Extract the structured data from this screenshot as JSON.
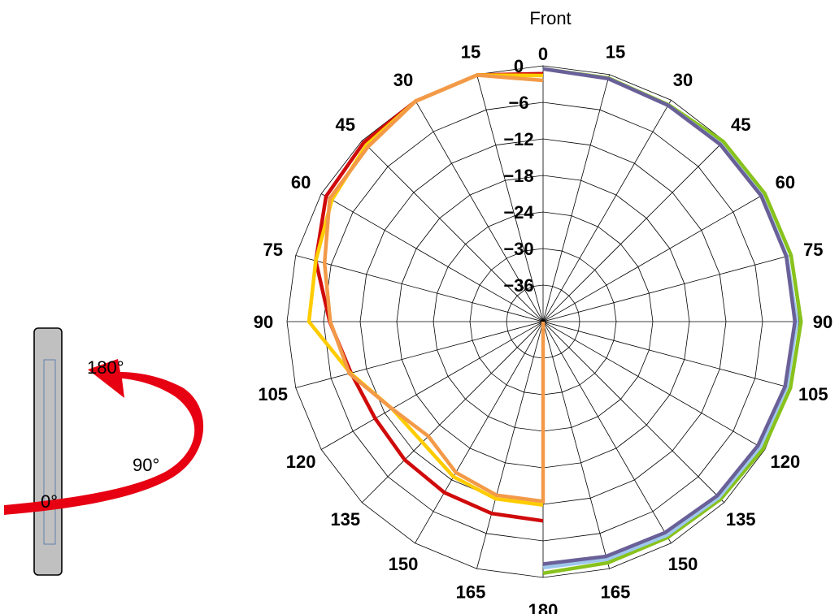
{
  "chart_data": {
    "type": "polar-line",
    "front_label": "Front",
    "angles": [
      0,
      15,
      30,
      45,
      60,
      75,
      90,
      105,
      120,
      135,
      150,
      165,
      180
    ],
    "angle_labels": [
      "0",
      "15",
      "30",
      "45",
      "60",
      "75",
      "90",
      "105",
      "120",
      "135",
      "150",
      "165",
      "180"
    ],
    "radial_ticks": [
      0,
      -6,
      -12,
      -18,
      -24,
      -30,
      -36
    ],
    "radial_tick_labels": [
      "0",
      "−6",
      "−12",
      "−18",
      "−24",
      "−30",
      "−36"
    ],
    "radial_range": [
      -42,
      0
    ],
    "grid": true,
    "series": [
      {
        "side": "right",
        "color": "#88c21c",
        "angles": [
          0,
          15,
          30,
          45,
          60,
          75,
          90,
          105,
          120,
          135,
          150,
          165,
          180
        ],
        "values": [
          -0.5,
          -0.6,
          -0.9,
          -0.2,
          0,
          0.1,
          0.3,
          0,
          -0.3,
          -0.8,
          -1.1,
          -1.0,
          -0.7
        ]
      },
      {
        "side": "right",
        "color": "#9ec8ec",
        "angles": [
          0,
          15,
          30,
          45,
          60,
          75,
          90,
          105,
          120,
          135,
          150,
          165,
          180
        ],
        "values": [
          -0.5,
          -0.7,
          -1.0,
          -0.8,
          -0.6,
          -0.6,
          -0.4,
          -0.6,
          -0.9,
          -1.2,
          -1.5,
          -1.6,
          -1.6
        ]
      },
      {
        "side": "right",
        "color": "#6a6098",
        "angles": [
          0,
          15,
          30,
          45,
          60,
          75,
          90,
          105,
          120,
          135,
          150,
          165,
          180
        ],
        "values": [
          -0.5,
          -0.7,
          -1.0,
          -0.9,
          -0.7,
          -0.7,
          -0.7,
          -0.9,
          -1.3,
          -1.6,
          -2.0,
          -2.1,
          -2.2
        ]
      },
      {
        "side": "left",
        "color": "#d00a0a",
        "angles": [
          0,
          15,
          30,
          45,
          60,
          75,
          90,
          105,
          120,
          135,
          150,
          165,
          180
        ],
        "values": [
          -1.3,
          -0.1,
          -0.2,
          -0.4,
          -0.9,
          -3.4,
          -7.0,
          -9.4,
          -10.2,
          -9.9,
          -9.6,
          -9.4,
          -9.3
        ]
      },
      {
        "side": "left",
        "color": "#ffcc00",
        "angles": [
          0,
          15,
          30,
          45,
          60,
          75,
          90,
          105,
          120,
          135,
          150,
          165,
          180
        ],
        "values": [
          -1.6,
          -0.1,
          -0.2,
          -1.0,
          -2.0,
          -3.4,
          -3.6,
          -9.3,
          -13.4,
          -14.0,
          -12.6,
          -11.9,
          -11.9
        ]
      },
      {
        "side": "left",
        "color": "#f39a48",
        "angles": [
          0,
          15,
          30,
          45,
          60,
          75,
          90,
          105,
          120,
          135,
          150,
          165,
          180,
          180,
          0
        ],
        "values": [
          -2.4,
          -0.1,
          -0.2,
          -1.4,
          -1.6,
          -4.9,
          -7.1,
          -9.1,
          -13.4,
          -15.4,
          -13.4,
          -12.5,
          -12.5,
          -42,
          -42
        ]
      }
    ]
  },
  "rotation_diagram": {
    "labels": [
      "0°",
      "90°",
      "180°"
    ],
    "arrow_color": "#e60012"
  }
}
